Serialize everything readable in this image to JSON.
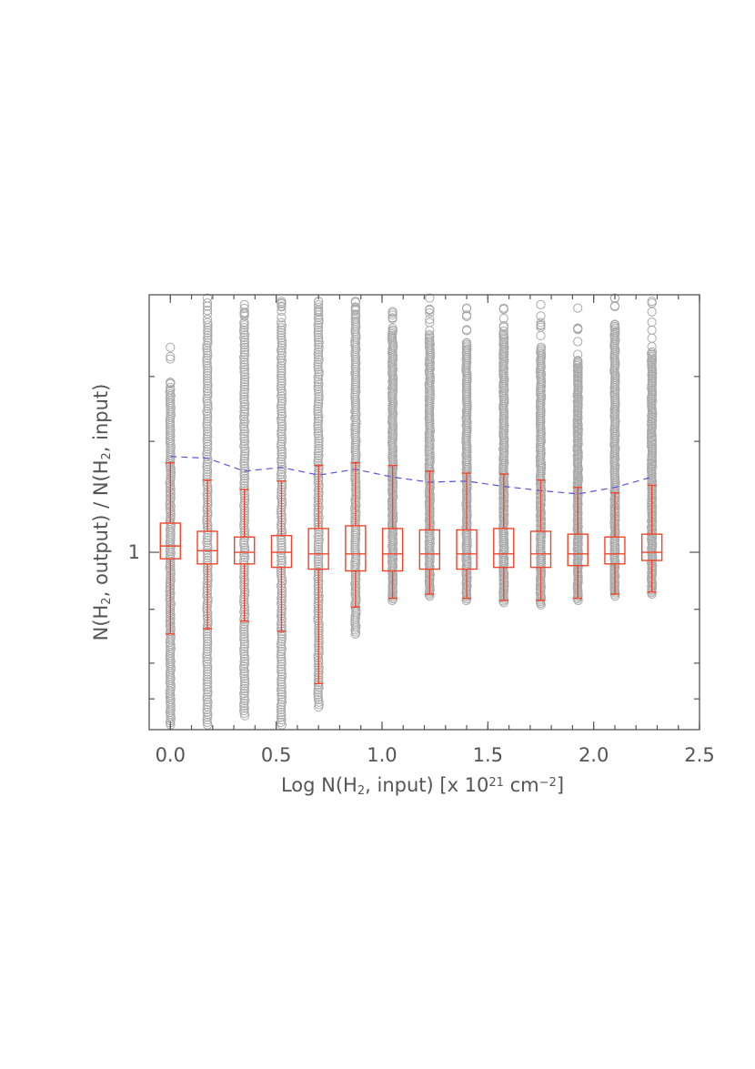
{
  "chart_data": {
    "type": "box",
    "title": "",
    "xlabel": {
      "parts": [
        {
          "text": "Log N(H"
        },
        {
          "text": "2",
          "sub": true
        },
        {
          "text": ", input) [x 10"
        },
        {
          "text": "21",
          "sup": true
        },
        {
          "text": " cm"
        },
        {
          "text": "−2",
          "sup": true
        },
        {
          "text": "]"
        }
      ]
    },
    "ylabel": {
      "parts": [
        {
          "text": "N(H"
        },
        {
          "text": "2",
          "sub": true
        },
        {
          "text": ", output) / N(H"
        },
        {
          "text": "2",
          "sub": true
        },
        {
          "text": ", input)"
        }
      ]
    },
    "xlim": [
      -0.1,
      2.5
    ],
    "xticks": [
      "0.0",
      "0.5",
      "1.0",
      "1.5",
      "2.0",
      "2.5"
    ],
    "yscale": "log",
    "ylim": [
      0.33,
      5.0
    ],
    "ytick_labels": [
      {
        "value": 1,
        "label": "1"
      }
    ],
    "y_minor_ticks": [
      0.4,
      0.5,
      0.7,
      2,
      3
    ],
    "grid": false,
    "colors": {
      "box": "#f0452a",
      "points": "#a9a9a9",
      "trend": "#5757d9",
      "axis": "#555555"
    },
    "boxes": [
      {
        "x": 0.0,
        "whisker_low": 0.6,
        "q1": 0.96,
        "median": 1.04,
        "q3": 1.2,
        "whisker_high": 1.75
      },
      {
        "x": 0.175,
        "whisker_low": 0.62,
        "q1": 0.93,
        "median": 1.01,
        "q3": 1.14,
        "whisker_high": 1.57
      },
      {
        "x": 0.35,
        "whisker_low": 0.65,
        "q1": 0.93,
        "median": 1.0,
        "q3": 1.1,
        "whisker_high": 1.48
      },
      {
        "x": 0.525,
        "whisker_low": 0.61,
        "q1": 0.91,
        "median": 1.0,
        "q3": 1.11,
        "whisker_high": 1.56
      },
      {
        "x": 0.7,
        "whisker_low": 0.44,
        "q1": 0.9,
        "median": 0.99,
        "q3": 1.16,
        "whisker_high": 1.72
      },
      {
        "x": 0.875,
        "whisker_low": 0.71,
        "q1": 0.89,
        "median": 0.99,
        "q3": 1.18,
        "whisker_high": 1.75
      },
      {
        "x": 1.05,
        "whisker_low": 0.75,
        "q1": 0.89,
        "median": 0.99,
        "q3": 1.16,
        "whisker_high": 1.72
      },
      {
        "x": 1.225,
        "whisker_low": 0.77,
        "q1": 0.9,
        "median": 0.99,
        "q3": 1.15,
        "whisker_high": 1.66
      },
      {
        "x": 1.4,
        "whisker_low": 0.75,
        "q1": 0.9,
        "median": 0.99,
        "q3": 1.15,
        "whisker_high": 1.64
      },
      {
        "x": 1.575,
        "whisker_low": 0.74,
        "q1": 0.91,
        "median": 0.99,
        "q3": 1.16,
        "whisker_high": 1.63
      },
      {
        "x": 1.75,
        "whisker_low": 0.74,
        "q1": 0.91,
        "median": 0.99,
        "q3": 1.14,
        "whisker_high": 1.57
      },
      {
        "x": 1.925,
        "whisker_low": 0.75,
        "q1": 0.92,
        "median": 0.99,
        "q3": 1.12,
        "whisker_high": 1.5
      },
      {
        "x": 2.1,
        "whisker_low": 0.77,
        "q1": 0.93,
        "median": 0.99,
        "q3": 1.1,
        "whisker_high": 1.45
      },
      {
        "x": 2.275,
        "whisker_low": 0.78,
        "q1": 0.95,
        "median": 1.0,
        "q3": 1.12,
        "whisker_high": 1.52
      }
    ],
    "trend_line": {
      "style": "dashed",
      "x": [
        0.0,
        0.175,
        0.35,
        0.525,
        0.7,
        0.875,
        1.05,
        1.225,
        1.4,
        1.575,
        1.75,
        1.925,
        2.1,
        2.275
      ],
      "y": [
        1.82,
        1.8,
        1.66,
        1.7,
        1.62,
        1.68,
        1.6,
        1.55,
        1.56,
        1.51,
        1.47,
        1.44,
        1.5,
        1.6
      ]
    },
    "scatter_columns": [
      {
        "x": 0.0,
        "min": 0.34,
        "max": 3.6,
        "cap": 2.8
      },
      {
        "x": 0.175,
        "min": 0.34,
        "max": 4.9,
        "cap": 4.2
      },
      {
        "x": 0.35,
        "min": 0.36,
        "max": 4.7,
        "cap": 4.2
      },
      {
        "x": 0.525,
        "min": 0.34,
        "max": 4.8,
        "cap": 4.2
      },
      {
        "x": 0.7,
        "min": 0.38,
        "max": 4.8,
        "cap": 4.4
      },
      {
        "x": 0.875,
        "min": 0.6,
        "max": 4.8,
        "cap": 4.4
      },
      {
        "x": 1.05,
        "min": 0.74,
        "max": 4.5,
        "cap": 4.0
      },
      {
        "x": 1.225,
        "min": 0.76,
        "max": 4.9,
        "cap": 3.9
      },
      {
        "x": 1.4,
        "min": 0.74,
        "max": 4.6,
        "cap": 3.7
      },
      {
        "x": 1.575,
        "min": 0.73,
        "max": 4.6,
        "cap": 3.9
      },
      {
        "x": 1.75,
        "min": 0.72,
        "max": 4.7,
        "cap": 3.6
      },
      {
        "x": 1.925,
        "min": 0.74,
        "max": 4.6,
        "cap": 3.3
      },
      {
        "x": 2.1,
        "min": 0.76,
        "max": 4.9,
        "cap": 4.1
      },
      {
        "x": 2.275,
        "min": 0.77,
        "max": 4.8,
        "cap": 3.5
      }
    ]
  }
}
